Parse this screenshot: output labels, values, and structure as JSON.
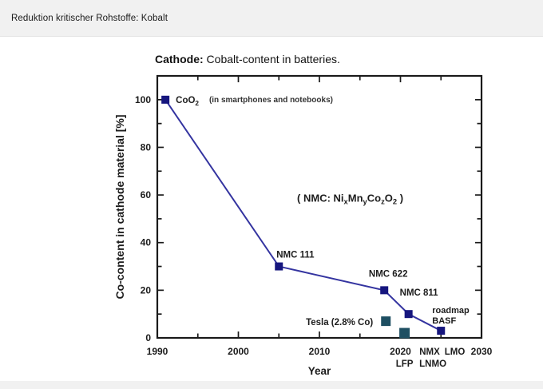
{
  "page": {
    "header": "Reduktion kritischer Rohstoffe: Kobalt"
  },
  "chart_data": {
    "type": "line+scatter",
    "title": {
      "bold": "Cathode:",
      "rest": " Cobalt-content in batteries."
    },
    "xlabel": "Year",
    "ylabel": "Co-content in cathode material [%]",
    "xlim": [
      1990,
      2030
    ],
    "ylim": [
      0,
      110
    ],
    "xticks": [
      1990,
      2000,
      2010,
      2020,
      2030
    ],
    "yticks": [
      0,
      20,
      40,
      60,
      80,
      100
    ],
    "x_minor_step": 5,
    "y_minor_step": 10,
    "grid": false,
    "colors": {
      "axis": "#1a1a1a",
      "text": "#1c1c1c",
      "note_text": "#333333",
      "nmc_line": "#3434a0",
      "nmc_marker": "#16167e",
      "alt_marker": "#1e4f62"
    },
    "series": [
      {
        "name": "cobalt-content-roadmap",
        "draw": "line+markers",
        "line_color": "#3434a0",
        "marker_color": "#16167e",
        "ms": 10,
        "points": [
          {
            "x": 1991,
            "y": 100,
            "label": {
              "lines": [
                [
                  {
                    "t": "CoO"
                  },
                  {
                    "t": "2",
                    "sub": true
                  }
                ]
              ],
              "anchor": "start",
              "dx": 13,
              "dy": 4,
              "size": 11.5,
              "weight": 700
            }
          },
          {
            "x": 2005,
            "y": 30,
            "label": {
              "lines": [
                [
                  {
                    "t": "NMC 111"
                  }
                ]
              ],
              "anchor": "start",
              "dx": -3,
              "dy": -11,
              "size": 11.5,
              "weight": 700
            }
          },
          {
            "x": 2018,
            "y": 20,
            "label": {
              "lines": [
                [
                  {
                    "t": "NMC 622"
                  }
                ]
              ],
              "anchor": "middle",
              "dx": 5,
              "dy": -17,
              "size": 11.5,
              "weight": 700
            }
          },
          {
            "x": 2021,
            "y": 10,
            "label": {
              "lines": [
                [
                  {
                    "t": "NMC 811"
                  }
                ]
              ],
              "anchor": "start",
              "dx": -11,
              "dy": -23,
              "size": 11.5,
              "weight": 700
            }
          },
          {
            "x": 2025,
            "y": 3,
            "label": {
              "lines": [
                [
                  {
                    "t": "roadmap"
                  }
                ],
                [
                  {
                    "t": "BASF"
                  }
                ]
              ],
              "anchor": "start",
              "dx": -11,
              "dy": -22,
              "lh": 13,
              "size": 11,
              "weight": 700
            }
          }
        ]
      },
      {
        "name": "alternative-chemistries",
        "draw": "markers",
        "marker_color": "#1e4f62",
        "ms": 12,
        "points": [
          {
            "x": 2018.2,
            "y": 7,
            "label": {
              "lines": [
                [
                  {
                    "t": "Tesla (2.8% Co)"
                  }
                ]
              ],
              "anchor": "end",
              "dx": -16,
              "dy": 5,
              "size": 11.5,
              "weight": 700
            }
          },
          {
            "x": 2020.5,
            "y": 2,
            "ms": 13
          }
        ]
      }
    ],
    "annotations": [
      {
        "lines": [
          [
            {
              "t": "(in smartphones and notebooks)"
            }
          ]
        ],
        "x": 1996.4,
        "y": 100,
        "dy": 3,
        "anchor": "start",
        "size": 10,
        "weight": 600,
        "color": "#333333"
      },
      {
        "lines": [
          [
            {
              "t": "( NMC: Ni"
            },
            {
              "t": "x",
              "sub": true
            },
            {
              "t": "Mn"
            },
            {
              "t": "y",
              "sub": true
            },
            {
              "t": "Co"
            },
            {
              "t": "z",
              "sub": true
            },
            {
              "t": "O"
            },
            {
              "t": "2",
              "sub": true
            },
            {
              "t": " )"
            }
          ]
        ],
        "x": 2013.8,
        "y": 58.5,
        "dy": 4,
        "anchor": "middle",
        "size": 13,
        "weight": 700,
        "color": "#1c1c1c"
      }
    ],
    "extra_xlabels": [
      {
        "text": "NMX",
        "x": 2023.6,
        "row": 1
      },
      {
        "text": "LMO",
        "x": 2026.7,
        "row": 1
      },
      {
        "text": "LFP",
        "x": 2020.5,
        "row": 2
      },
      {
        "text": "LNMO",
        "x": 2024.0,
        "row": 2
      }
    ]
  }
}
